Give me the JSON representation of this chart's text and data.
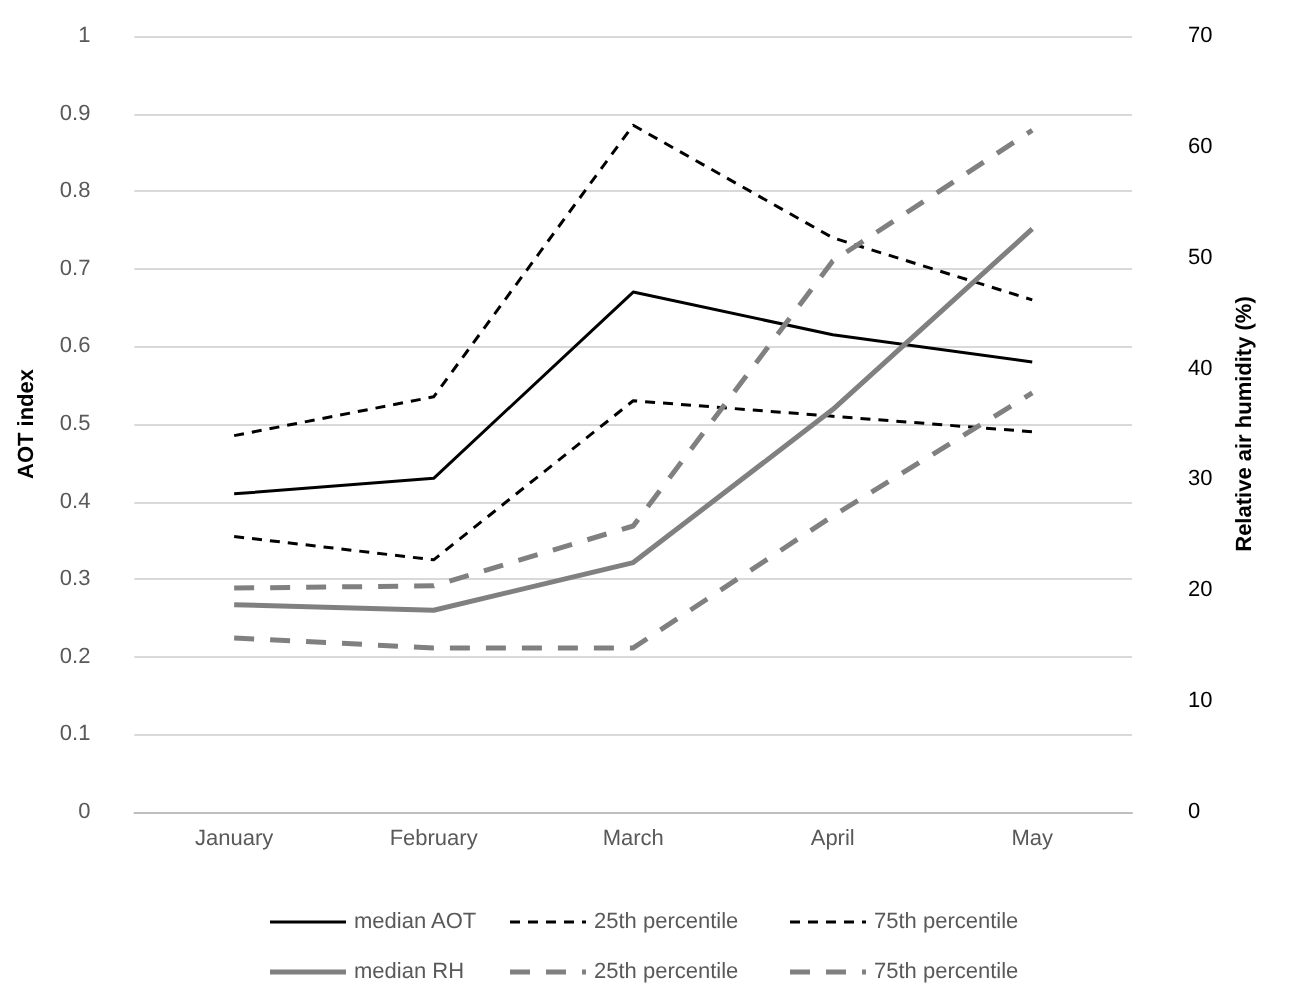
{
  "chart_data": {
    "type": "line",
    "categories": [
      "January",
      "February",
      "March",
      "April",
      "May"
    ],
    "ylabel": "AOT index",
    "y2label": "Relative air humidity (%)",
    "ylim": [
      0,
      1
    ],
    "yticks": [
      0,
      0.1,
      0.2,
      0.3,
      0.4,
      0.5,
      0.6,
      0.7,
      0.8,
      0.9,
      1
    ],
    "y2lim": [
      0,
      70
    ],
    "y2ticks": [
      0,
      10,
      20,
      30,
      40,
      50,
      60,
      70
    ],
    "grid": "y",
    "legend": "bottom",
    "marker": "none",
    "series": [
      {
        "name": "median AOT",
        "color": "#000000",
        "line_style": "solid",
        "values": [
          0.41,
          0.43,
          0.67,
          0.615,
          0.58
        ]
      },
      {
        "name": "25th percentile",
        "color": "#000000",
        "line_style": "dashed",
        "values": [
          0.355,
          0.325,
          0.53,
          0.51,
          0.49
        ]
      },
      {
        "name": "75th percentile",
        "color": "#000000",
        "line_style": "dashed",
        "values": [
          0.485,
          0.535,
          0.885,
          0.74,
          0.66
        ]
      },
      {
        "name": "median RH",
        "color": "#808080",
        "line_style": "solid",
        "axis": "y2",
        "values": [
          18.7,
          18.2,
          22.5,
          36.3,
          52.6
        ]
      },
      {
        "name": "25th percentile",
        "color": "#808080",
        "line_style": "dashed",
        "axis": "y2",
        "values": [
          15.7,
          14.8,
          14.8,
          26.7,
          37.8
        ]
      },
      {
        "name": "75th percentile",
        "color": "#808080",
        "line_style": "dashed",
        "axis": "y2",
        "values": [
          20.2,
          20.4,
          25.8,
          49.7,
          61.5
        ]
      }
    ]
  }
}
